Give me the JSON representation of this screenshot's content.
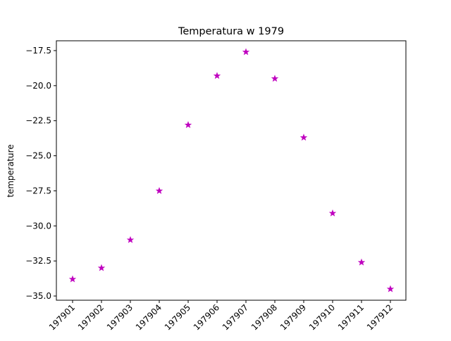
{
  "chart_data": {
    "type": "scatter",
    "title": "Temperatura w 1979",
    "xlabel": "",
    "ylabel": "temperature",
    "categories": [
      "197901",
      "197902",
      "197903",
      "197904",
      "197905",
      "197906",
      "197907",
      "197908",
      "197909",
      "197910",
      "197911",
      "197912"
    ],
    "values": [
      -33.8,
      -33.0,
      -31.0,
      -27.5,
      -22.8,
      -19.3,
      -17.6,
      -19.5,
      -23.7,
      -29.1,
      -32.6,
      -34.5
    ],
    "ylim": [
      -35.3,
      -16.8
    ],
    "yticks": [
      -35.0,
      -32.5,
      -30.0,
      -27.5,
      -25.0,
      -22.5,
      -20.0,
      -17.5
    ],
    "ytick_labels": [
      "−35.0",
      "−32.5",
      "−30.0",
      "−27.5",
      "−25.0",
      "−22.5",
      "−20.0",
      "−17.5"
    ],
    "marker": "star",
    "color": "#bf00bf",
    "grid": false,
    "legend": "none"
  }
}
